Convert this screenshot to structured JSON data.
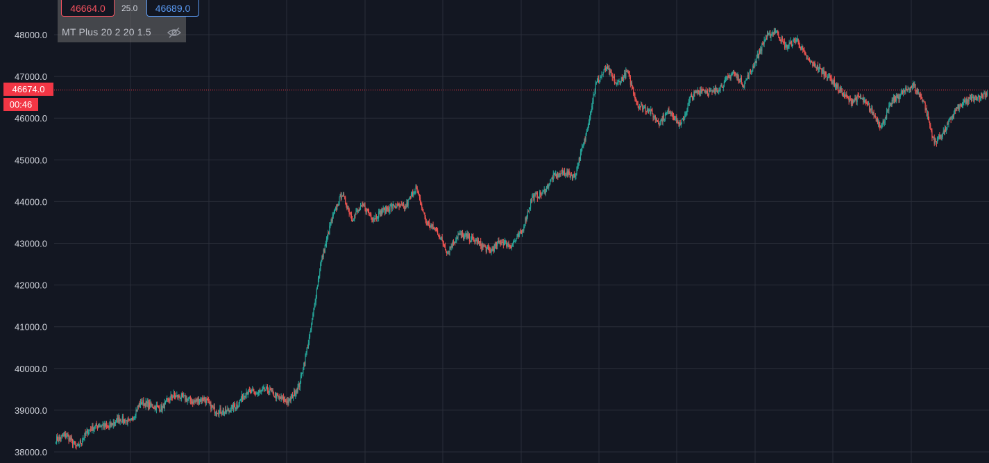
{
  "header": {
    "bid": "46664.0",
    "spread": "25.0",
    "ask": "46689.0",
    "indicator": "MT Plus 20 2 20 1.5",
    "eye_icon": "eye-off-icon"
  },
  "price_axis": {
    "current_price": "46674.0",
    "countdown": "00:46"
  },
  "colors": {
    "background": "#131722",
    "grid": "#2a2e39",
    "up": "#26a69a",
    "down": "#ef5350",
    "bid": "#f7525f",
    "ask": "#5b9cf6",
    "price_label": "#f23645"
  },
  "chart_data": {
    "type": "candlestick",
    "title": "",
    "xlabel": "",
    "ylabel": "",
    "ylim": [
      37850,
      48650
    ],
    "y_ticks": [
      "38000.0",
      "39000.0",
      "40000.0",
      "41000.0",
      "42000.0",
      "43000.0",
      "44000.0",
      "45000.0",
      "46000.0",
      "47000.0",
      "48000.0"
    ],
    "current_price": 46674,
    "grid": true,
    "series": [
      {
        "values": [
          38300,
          38400,
          38100,
          38500,
          38650,
          38600,
          38800,
          38700,
          39200,
          39100,
          39050,
          39350,
          39300,
          39200,
          39280,
          39000,
          38950,
          39100,
          39450,
          39400,
          39500,
          39300,
          39200,
          39600,
          40800,
          42500,
          43500,
          44200,
          43600,
          43900,
          43600,
          43800,
          43900,
          43850,
          44350,
          43500,
          43300,
          42800,
          43200,
          43150,
          43000,
          42800,
          43050,
          42950,
          43250,
          44100,
          44200,
          44600,
          44700,
          44600,
          45500,
          46800,
          47200,
          46800,
          47100,
          46300,
          46200,
          45900,
          46200,
          45800,
          46500,
          46700,
          46600,
          46800,
          47100,
          46800,
          47300,
          47900,
          48100,
          47700,
          47900,
          47400,
          47200,
          47000,
          46700,
          46400,
          46500,
          46200,
          45800,
          46400,
          46600,
          46800,
          46400,
          45400,
          45700,
          46200,
          46400,
          46500,
          46600
        ]
      }
    ]
  }
}
